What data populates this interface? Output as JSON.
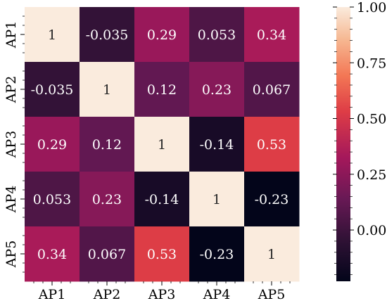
{
  "chart_data": {
    "type": "heatmap",
    "title": "",
    "xlabel": "",
    "ylabel": "",
    "x_categories": [
      "AP1",
      "AP2",
      "AP3",
      "AP4",
      "AP5"
    ],
    "y_categories": [
      "AP1",
      "AP2",
      "AP3",
      "AP4",
      "AP5"
    ],
    "values": [
      [
        1,
        -0.035,
        0.29,
        0.053,
        0.34
      ],
      [
        -0.035,
        1,
        0.12,
        0.23,
        0.067
      ],
      [
        0.29,
        0.12,
        1,
        -0.14,
        0.53
      ],
      [
        0.053,
        0.23,
        -0.14,
        1,
        -0.23
      ],
      [
        0.34,
        0.067,
        0.53,
        -0.23,
        1
      ]
    ],
    "cell_labels": [
      [
        "1",
        "-0.035",
        "0.29",
        "0.053",
        "0.34"
      ],
      [
        "-0.035",
        "1",
        "0.12",
        "0.23",
        "0.067"
      ],
      [
        "0.29",
        "0.12",
        "1",
        "-0.14",
        "0.53"
      ],
      [
        "0.053",
        "0.23",
        "-0.14",
        "1",
        "-0.23"
      ],
      [
        "0.34",
        "0.067",
        "0.53",
        "-0.23",
        "1"
      ]
    ],
    "colorbar": {
      "range": [
        -0.23,
        1.0
      ],
      "ticks": [
        0.0,
        0.25,
        0.5,
        0.75,
        1.0
      ],
      "tick_labels": [
        "0.00",
        "0.25",
        "0.50",
        "0.75",
        "1.00"
      ],
      "colormap": "rocket"
    },
    "grid": false
  }
}
